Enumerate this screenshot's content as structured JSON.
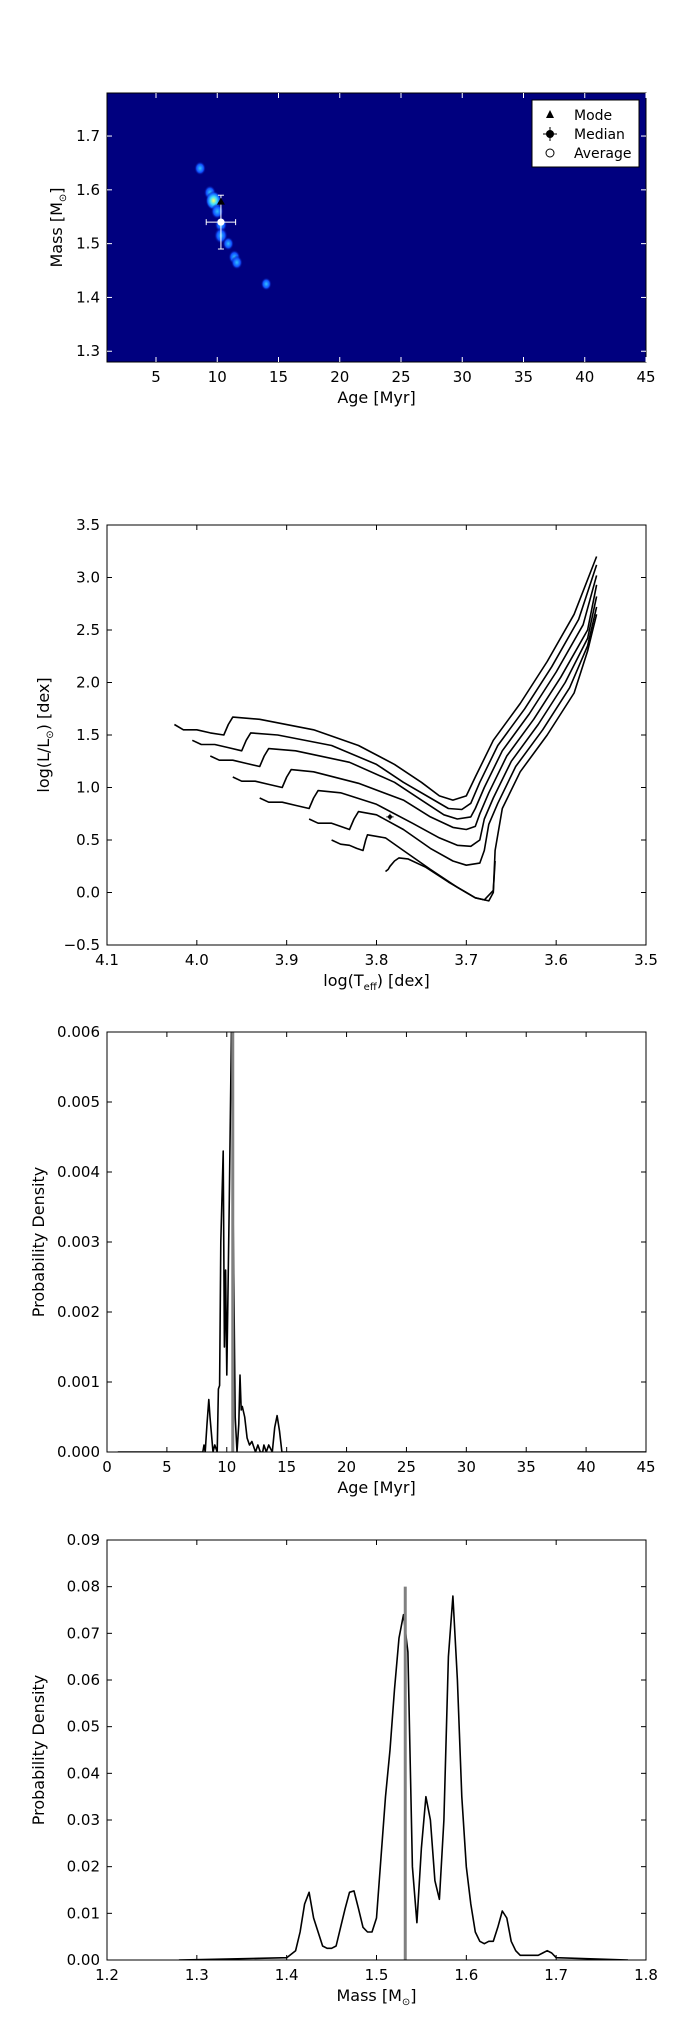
{
  "chart_data": [
    {
      "type": "heatmap",
      "xlabel": "Age [Myr]",
      "ylabel_main": "Mass [M",
      "ylabel_sub": "⊙",
      "ylabel_end": "]",
      "xlim": [
        1,
        45
      ],
      "ylim": [
        1.28,
        1.78
      ],
      "xticks": [
        5,
        10,
        15,
        20,
        25,
        30,
        35,
        40,
        45
      ],
      "yticks": [
        1.3,
        1.4,
        1.5,
        1.6,
        1.7
      ],
      "background_color": "#00007f",
      "hotspots": [
        {
          "x": 8.6,
          "y": 1.64,
          "level": 0.45
        },
        {
          "x": 9.4,
          "y": 1.595,
          "level": 0.5
        },
        {
          "x": 9.7,
          "y": 1.58,
          "level": 1.0
        },
        {
          "x": 10.0,
          "y": 1.56,
          "level": 0.6
        },
        {
          "x": 10.3,
          "y": 1.535,
          "level": 0.55
        },
        {
          "x": 10.3,
          "y": 1.515,
          "level": 0.7
        },
        {
          "x": 10.9,
          "y": 1.5,
          "level": 0.4
        },
        {
          "x": 11.4,
          "y": 1.475,
          "level": 0.5
        },
        {
          "x": 11.6,
          "y": 1.465,
          "level": 0.45
        },
        {
          "x": 14.0,
          "y": 1.425,
          "level": 0.35
        }
      ],
      "markers": {
        "mode": {
          "x": 10.3,
          "y": 1.578
        },
        "median": {
          "x": 10.3,
          "y": 1.54,
          "xerr": [
            1.2,
            1.2
          ],
          "yerr": [
            0.05,
            0.05
          ]
        },
        "average": {
          "x": 10.3,
          "y": 1.54
        }
      },
      "legend": [
        "Mode",
        "Median",
        "Average"
      ],
      "legend_position": "top-right"
    },
    {
      "type": "line",
      "xlabel_main": "log(T",
      "xlabel_sub": "eff",
      "xlabel_end": ") [dex]",
      "ylabel_main": "log(L/L",
      "ylabel_sub": "⊙",
      "ylabel_end": ") [dex]",
      "xlim": [
        4.1,
        3.5
      ],
      "ylim": [
        -0.5,
        3.5
      ],
      "xticks": [
        4.1,
        4.0,
        3.9,
        3.8,
        3.7,
        3.6,
        3.5
      ],
      "xtick_labels": [
        "4.1",
        "4.0",
        "3.9",
        "3.8",
        "3.7",
        "3.6",
        "3.5"
      ],
      "yticks": [
        -0.5,
        0.0,
        0.5,
        1.0,
        1.5,
        2.0,
        2.5,
        3.0,
        3.5
      ],
      "ytick_labels": [
        "−0.5",
        "0.0",
        "0.5",
        "1.0",
        "1.5",
        "2.0",
        "2.5",
        "3.0",
        "3.5"
      ],
      "series": [
        {
          "points": [
            [
              4.025,
              1.6
            ],
            [
              4.015,
              1.55
            ],
            [
              4.0,
              1.55
            ],
            [
              3.985,
              1.52
            ],
            [
              3.97,
              1.5
            ],
            [
              3.965,
              1.6
            ],
            [
              3.96,
              1.67
            ],
            [
              3.93,
              1.65
            ],
            [
              3.87,
              1.55
            ],
            [
              3.82,
              1.4
            ],
            [
              3.78,
              1.22
            ],
            [
              3.75,
              1.05
            ],
            [
              3.73,
              0.92
            ],
            [
              3.715,
              0.88
            ],
            [
              3.7,
              0.92
            ],
            [
              3.69,
              1.1
            ],
            [
              3.67,
              1.45
            ],
            [
              3.64,
              1.8
            ],
            [
              3.61,
              2.2
            ],
            [
              3.58,
              2.65
            ],
            [
              3.555,
              3.2
            ]
          ]
        },
        {
          "points": [
            [
              4.005,
              1.45
            ],
            [
              3.995,
              1.41
            ],
            [
              3.98,
              1.41
            ],
            [
              3.965,
              1.38
            ],
            [
              3.95,
              1.35
            ],
            [
              3.945,
              1.45
            ],
            [
              3.94,
              1.52
            ],
            [
              3.91,
              1.5
            ],
            [
              3.85,
              1.4
            ],
            [
              3.8,
              1.22
            ],
            [
              3.77,
              1.05
            ],
            [
              3.74,
              0.9
            ],
            [
              3.72,
              0.8
            ],
            [
              3.705,
              0.79
            ],
            [
              3.695,
              0.85
            ],
            [
              3.685,
              1.05
            ],
            [
              3.665,
              1.4
            ],
            [
              3.635,
              1.75
            ],
            [
              3.605,
              2.15
            ],
            [
              3.575,
              2.6
            ],
            [
              3.555,
              3.12
            ]
          ]
        },
        {
          "points": [
            [
              3.985,
              1.3
            ],
            [
              3.975,
              1.26
            ],
            [
              3.96,
              1.26
            ],
            [
              3.945,
              1.23
            ],
            [
              3.93,
              1.2
            ],
            [
              3.925,
              1.3
            ],
            [
              3.92,
              1.37
            ],
            [
              3.89,
              1.35
            ],
            [
              3.83,
              1.24
            ],
            [
              3.78,
              1.05
            ],
            [
              3.75,
              0.88
            ],
            [
              3.725,
              0.74
            ],
            [
              3.71,
              0.7
            ],
            [
              3.695,
              0.72
            ],
            [
              3.69,
              0.8
            ],
            [
              3.68,
              1.0
            ],
            [
              3.66,
              1.35
            ],
            [
              3.63,
              1.7
            ],
            [
              3.6,
              2.1
            ],
            [
              3.57,
              2.55
            ],
            [
              3.555,
              3.02
            ]
          ]
        },
        {
          "points": [
            [
              3.96,
              1.1
            ],
            [
              3.95,
              1.06
            ],
            [
              3.935,
              1.06
            ],
            [
              3.92,
              1.03
            ],
            [
              3.905,
              1.0
            ],
            [
              3.9,
              1.1
            ],
            [
              3.895,
              1.17
            ],
            [
              3.87,
              1.15
            ],
            [
              3.82,
              1.04
            ],
            [
              3.77,
              0.88
            ],
            [
              3.74,
              0.72
            ],
            [
              3.715,
              0.62
            ],
            [
              3.7,
              0.6
            ],
            [
              3.69,
              0.63
            ],
            [
              3.685,
              0.75
            ],
            [
              3.675,
              0.95
            ],
            [
              3.655,
              1.3
            ],
            [
              3.625,
              1.65
            ],
            [
              3.595,
              2.05
            ],
            [
              3.565,
              2.5
            ],
            [
              3.555,
              2.93
            ]
          ]
        },
        {
          "points": [
            [
              3.93,
              0.9
            ],
            [
              3.92,
              0.86
            ],
            [
              3.905,
              0.86
            ],
            [
              3.89,
              0.83
            ],
            [
              3.875,
              0.8
            ],
            [
              3.87,
              0.9
            ],
            [
              3.865,
              0.97
            ],
            [
              3.84,
              0.95
            ],
            [
              3.8,
              0.84
            ],
            [
              3.76,
              0.66
            ],
            [
              3.73,
              0.52
            ],
            [
              3.71,
              0.45
            ],
            [
              3.695,
              0.44
            ],
            [
              3.685,
              0.5
            ],
            [
              3.68,
              0.7
            ],
            [
              3.67,
              0.9
            ],
            [
              3.65,
              1.25
            ],
            [
              3.62,
              1.6
            ],
            [
              3.59,
              2.0
            ],
            [
              3.565,
              2.42
            ],
            [
              3.555,
              2.82
            ]
          ]
        },
        {
          "points": [
            [
              3.875,
              0.7
            ],
            [
              3.865,
              0.66
            ],
            [
              3.85,
              0.66
            ],
            [
              3.84,
              0.63
            ],
            [
              3.83,
              0.6
            ],
            [
              3.825,
              0.7
            ],
            [
              3.82,
              0.77
            ],
            [
              3.8,
              0.74
            ],
            [
              3.77,
              0.6
            ],
            [
              3.74,
              0.42
            ],
            [
              3.715,
              0.3
            ],
            [
              3.7,
              0.26
            ],
            [
              3.685,
              0.28
            ],
            [
              3.68,
              0.4
            ],
            [
              3.675,
              0.65
            ],
            [
              3.665,
              0.85
            ],
            [
              3.645,
              1.2
            ],
            [
              3.615,
              1.55
            ],
            [
              3.585,
              1.95
            ],
            [
              3.565,
              2.35
            ],
            [
              3.555,
              2.72
            ]
          ]
        },
        {
          "points": [
            [
              3.85,
              0.5
            ],
            [
              3.84,
              0.46
            ],
            [
              3.83,
              0.45
            ],
            [
              3.822,
              0.42
            ],
            [
              3.815,
              0.4
            ],
            [
              3.812,
              0.5
            ],
            [
              3.81,
              0.55
            ],
            [
              3.79,
              0.52
            ],
            [
              3.77,
              0.4
            ],
            [
              3.74,
              0.22
            ],
            [
              3.71,
              0.05
            ],
            [
              3.69,
              -0.05
            ],
            [
              3.675,
              -0.08
            ],
            [
              3.67,
              0.0
            ],
            [
              3.668,
              0.4
            ],
            [
              3.66,
              0.8
            ],
            [
              3.64,
              1.15
            ],
            [
              3.61,
              1.5
            ],
            [
              3.58,
              1.9
            ],
            [
              3.565,
              2.3
            ],
            [
              3.555,
              2.65
            ]
          ]
        },
        {
          "points": [
            [
              3.79,
              0.2
            ],
            [
              3.787,
              0.22
            ],
            [
              3.785,
              0.25
            ],
            [
              3.78,
              0.3
            ],
            [
              3.775,
              0.33
            ],
            [
              3.765,
              0.32
            ],
            [
              3.745,
              0.24
            ],
            [
              3.72,
              0.1
            ],
            [
              3.7,
              0.0
            ],
            [
              3.69,
              -0.05
            ],
            [
              3.68,
              -0.07
            ],
            [
              3.67,
              0.02
            ],
            [
              3.668,
              0.3
            ]
          ]
        }
      ],
      "star": {
        "x": 3.785,
        "y": 0.72,
        "xerr": 0.004,
        "yerr": 0.03
      }
    },
    {
      "type": "line",
      "xlabel": "Age [Myr]",
      "ylabel": "Probability Density",
      "xlim": [
        0,
        45
      ],
      "ylim": [
        0,
        0.006
      ],
      "xticks": [
        0,
        5,
        10,
        15,
        20,
        25,
        30,
        35,
        40,
        45
      ],
      "yticks": [
        0.0,
        0.001,
        0.002,
        0.003,
        0.004,
        0.005,
        0.006
      ],
      "ytick_labels": [
        "0.000",
        "0.001",
        "0.002",
        "0.003",
        "0.004",
        "0.005",
        "0.006"
      ],
      "x": [
        0.9,
        7.8,
        8.0,
        8.1,
        8.2,
        8.35,
        8.5,
        8.6,
        8.7,
        8.85,
        9.0,
        9.2,
        9.3,
        9.4,
        9.5,
        9.7,
        9.8,
        9.9,
        10.0,
        10.2,
        10.4,
        10.5,
        10.7,
        10.85,
        11.0,
        11.1,
        11.2,
        11.3,
        11.5,
        11.7,
        11.9,
        12.1,
        12.4,
        12.6,
        12.8,
        13.0,
        13.1,
        13.3,
        13.5,
        13.8,
        14.0,
        14.2,
        14.4,
        14.6,
        14.8,
        45
      ],
      "y": [
        0,
        0,
        0,
        0.0001,
        0.0,
        0.0004,
        0.00075,
        0.0005,
        0.0003,
        0.0,
        0.0001,
        0.0,
        0.0009,
        0.00095,
        0.003,
        0.0043,
        0.0015,
        0.0026,
        0.0011,
        0.0035,
        0.0062,
        0.0038,
        0.0005,
        0.0,
        0.0004,
        0.0011,
        0.0006,
        0.00065,
        0.0005,
        0.0002,
        0.0001,
        0.00015,
        0.0,
        0.0001,
        0.0,
        0.0,
        0.0001,
        0.0,
        0.0001,
        0.0,
        0.00035,
        0.00052,
        0.0003,
        0.0,
        0.0,
        0.0
      ],
      "vline": 10.5
    },
    {
      "type": "line",
      "xlabel_main": "Mass [M",
      "xlabel_sub": "⊙",
      "xlabel_end": "]",
      "ylabel": "Probability Density",
      "xlim": [
        1.2,
        1.8
      ],
      "ylim": [
        0,
        0.09
      ],
      "xticks": [
        1.2,
        1.3,
        1.4,
        1.5,
        1.6,
        1.7,
        1.8
      ],
      "xtick_labels": [
        "1.2",
        "1.3",
        "1.4",
        "1.5",
        "1.6",
        "1.7",
        "1.8"
      ],
      "yticks": [
        0.0,
        0.01,
        0.02,
        0.03,
        0.04,
        0.05,
        0.06,
        0.07,
        0.08,
        0.09
      ],
      "ytick_labels": [
        "0.00",
        "0.01",
        "0.02",
        "0.03",
        "0.04",
        "0.05",
        "0.06",
        "0.07",
        "0.08",
        "0.09"
      ],
      "x": [
        1.28,
        1.4,
        1.41,
        1.415,
        1.42,
        1.425,
        1.43,
        1.435,
        1.44,
        1.445,
        1.45,
        1.455,
        1.46,
        1.465,
        1.47,
        1.475,
        1.48,
        1.485,
        1.49,
        1.495,
        1.5,
        1.505,
        1.51,
        1.515,
        1.52,
        1.525,
        1.53,
        1.535,
        1.54,
        1.545,
        1.55,
        1.555,
        1.56,
        1.565,
        1.57,
        1.575,
        1.58,
        1.585,
        1.59,
        1.595,
        1.6,
        1.605,
        1.61,
        1.615,
        1.62,
        1.625,
        1.63,
        1.635,
        1.64,
        1.645,
        1.65,
        1.655,
        1.66,
        1.665,
        1.67,
        1.675,
        1.68,
        1.685,
        1.69,
        1.695,
        1.7,
        1.78
      ],
      "y": [
        0,
        0.0005,
        0.002,
        0.006,
        0.012,
        0.0145,
        0.009,
        0.006,
        0.003,
        0.0025,
        0.0025,
        0.003,
        0.007,
        0.011,
        0.0145,
        0.0148,
        0.011,
        0.007,
        0.006,
        0.006,
        0.009,
        0.022,
        0.035,
        0.045,
        0.058,
        0.069,
        0.074,
        0.066,
        0.02,
        0.008,
        0.024,
        0.035,
        0.03,
        0.017,
        0.013,
        0.03,
        0.065,
        0.078,
        0.06,
        0.035,
        0.02,
        0.012,
        0.006,
        0.004,
        0.0035,
        0.004,
        0.004,
        0.007,
        0.0105,
        0.009,
        0.004,
        0.002,
        0.001,
        0.001,
        0.001,
        0.001,
        0.001,
        0.0015,
        0.002,
        0.0015,
        0.0005,
        0.0
      ],
      "vline": 1.532
    }
  ]
}
